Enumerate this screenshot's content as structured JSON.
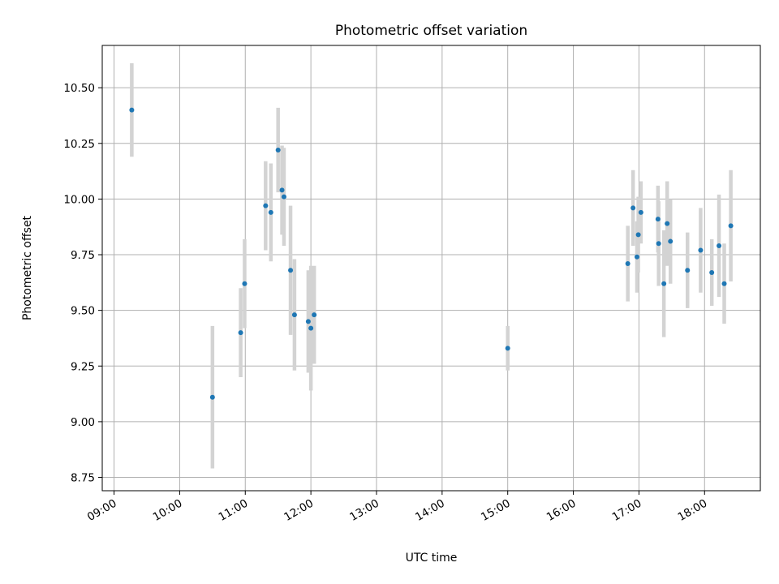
{
  "chart_data": {
    "type": "scatter",
    "title": "Photometric offset variation",
    "xlabel": "UTC time",
    "ylabel": "Photometric offset",
    "x_unit": "hours",
    "xlim": [
      8.82,
      18.85
    ],
    "ylim": [
      8.69,
      10.69
    ],
    "x_ticks": [
      {
        "value": 9,
        "label": "09:00"
      },
      {
        "value": 10,
        "label": "10:00"
      },
      {
        "value": 11,
        "label": "11:00"
      },
      {
        "value": 12,
        "label": "12:00"
      },
      {
        "value": 13,
        "label": "13:00"
      },
      {
        "value": 14,
        "label": "14:00"
      },
      {
        "value": 15,
        "label": "15:00"
      },
      {
        "value": 16,
        "label": "16:00"
      },
      {
        "value": 17,
        "label": "17:00"
      },
      {
        "value": 18,
        "label": "18:00"
      }
    ],
    "y_ticks": [
      {
        "value": 8.75,
        "label": "8.75"
      },
      {
        "value": 9.0,
        "label": "9.00"
      },
      {
        "value": 9.25,
        "label": "9.25"
      },
      {
        "value": 9.5,
        "label": "9.50"
      },
      {
        "value": 9.75,
        "label": "9.75"
      },
      {
        "value": 10.0,
        "label": "10.00"
      },
      {
        "value": 10.25,
        "label": "10.25"
      },
      {
        "value": 10.5,
        "label": "10.50"
      }
    ],
    "grid": true,
    "marker_color": "#1f77b4",
    "errorbar_color": "#d3d3d3",
    "points": [
      {
        "x": 9.27,
        "y": 10.4,
        "err": 0.21
      },
      {
        "x": 10.5,
        "y": 9.11,
        "err": 0.32
      },
      {
        "x": 10.93,
        "y": 9.4,
        "err": 0.2
      },
      {
        "x": 10.99,
        "y": 9.62,
        "err": 0.2
      },
      {
        "x": 11.31,
        "y": 9.97,
        "err": 0.2
      },
      {
        "x": 11.39,
        "y": 9.94,
        "err": 0.22
      },
      {
        "x": 11.5,
        "y": 10.22,
        "err": 0.19
      },
      {
        "x": 11.56,
        "y": 10.04,
        "err": 0.2
      },
      {
        "x": 11.59,
        "y": 10.01,
        "err": 0.22
      },
      {
        "x": 11.69,
        "y": 9.68,
        "err": 0.29
      },
      {
        "x": 11.75,
        "y": 9.48,
        "err": 0.25
      },
      {
        "x": 11.96,
        "y": 9.45,
        "err": 0.23
      },
      {
        "x": 12.0,
        "y": 9.42,
        "err": 0.28
      },
      {
        "x": 12.05,
        "y": 9.48,
        "err": 0.22
      },
      {
        "x": 15.0,
        "y": 9.33,
        "err": 0.1
      },
      {
        "x": 16.83,
        "y": 9.71,
        "err": 0.17
      },
      {
        "x": 16.91,
        "y": 9.96,
        "err": 0.17
      },
      {
        "x": 16.97,
        "y": 9.74,
        "err": 0.16
      },
      {
        "x": 16.99,
        "y": 9.84,
        "err": 0.17
      },
      {
        "x": 17.03,
        "y": 9.94,
        "err": 0.14
      },
      {
        "x": 17.29,
        "y": 9.91,
        "err": 0.15
      },
      {
        "x": 17.3,
        "y": 9.8,
        "err": 0.19
      },
      {
        "x": 17.38,
        "y": 9.62,
        "err": 0.24
      },
      {
        "x": 17.43,
        "y": 9.89,
        "err": 0.19
      },
      {
        "x": 17.48,
        "y": 9.81,
        "err": 0.19
      },
      {
        "x": 17.74,
        "y": 9.68,
        "err": 0.17
      },
      {
        "x": 17.94,
        "y": 9.77,
        "err": 0.19
      },
      {
        "x": 18.11,
        "y": 9.67,
        "err": 0.15
      },
      {
        "x": 18.22,
        "y": 9.79,
        "err": 0.23
      },
      {
        "x": 18.3,
        "y": 9.62,
        "err": 0.18
      },
      {
        "x": 18.4,
        "y": 9.88,
        "err": 0.25
      }
    ]
  }
}
